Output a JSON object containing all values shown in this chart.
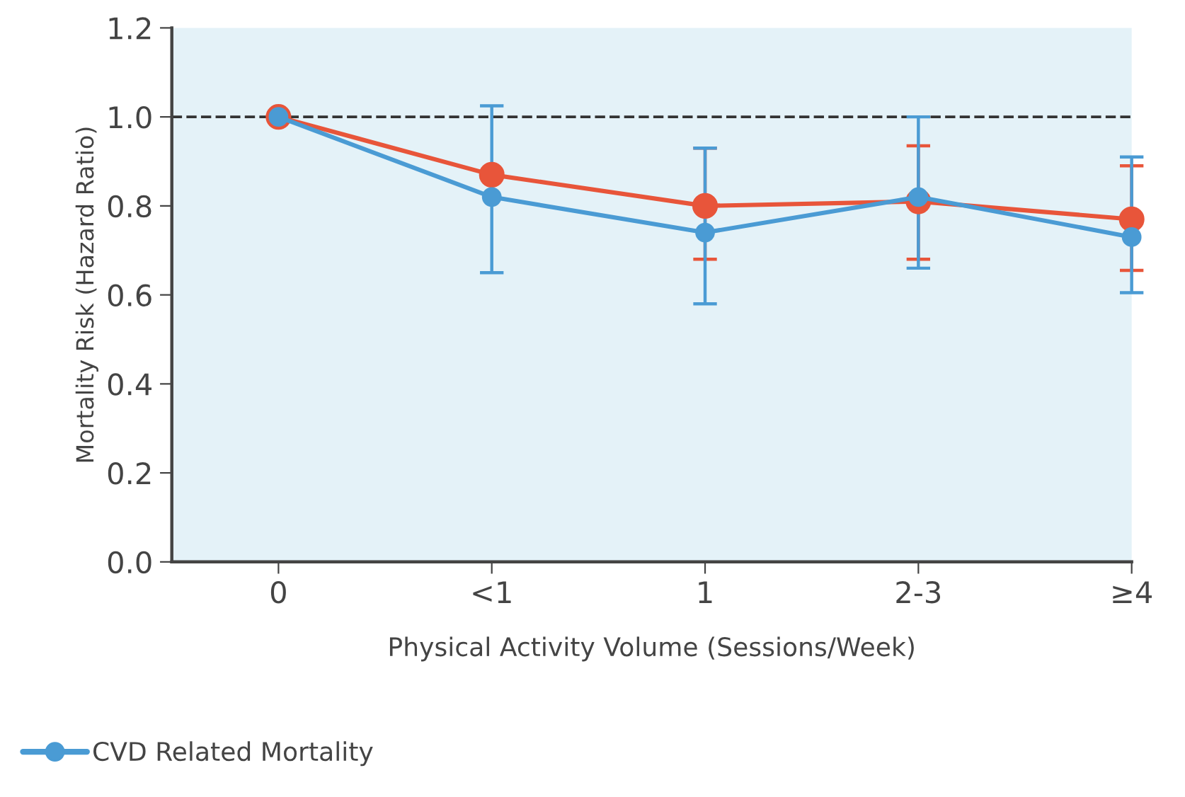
{
  "chart_data": {
    "type": "line",
    "xlabel": "Physical Activity Volume (Sessions/Week)",
    "ylabel": "Mortality Risk (Hazard Ratio)",
    "categories": [
      "0",
      "<1",
      "1",
      "2-3",
      "≥4"
    ],
    "series": [
      {
        "color": "#e8553a",
        "values": [
          1.0,
          0.87,
          0.8,
          0.81,
          0.77
        ],
        "errors": [
          null,
          null,
          [
            0.68,
            0.93
          ],
          [
            0.68,
            0.935
          ],
          [
            0.655,
            0.89
          ]
        ]
      },
      {
        "name": "CVD Related Mortality",
        "color": "#4a9bd4",
        "values": [
          1.0,
          0.82,
          0.74,
          0.82,
          0.73
        ],
        "errors": [
          null,
          [
            0.65,
            1.025
          ],
          [
            0.58,
            0.93
          ],
          [
            0.66,
            1.0
          ],
          [
            0.605,
            0.91
          ]
        ]
      }
    ],
    "ylim": [
      0.0,
      1.2
    ],
    "yticks": [
      {
        "value": 0.0,
        "label": "0.0"
      },
      0.2,
      0.4,
      0.6,
      0.8,
      {
        "value": 1.0,
        "label": "1.0"
      },
      1.2
    ],
    "ref_lines": [
      {
        "axis": "y",
        "value": 1.0,
        "color": "#333333",
        "line_style": "dashed"
      }
    ],
    "marker": "circle",
    "line_style": "solid",
    "grid": false,
    "legend": "bottom left"
  }
}
